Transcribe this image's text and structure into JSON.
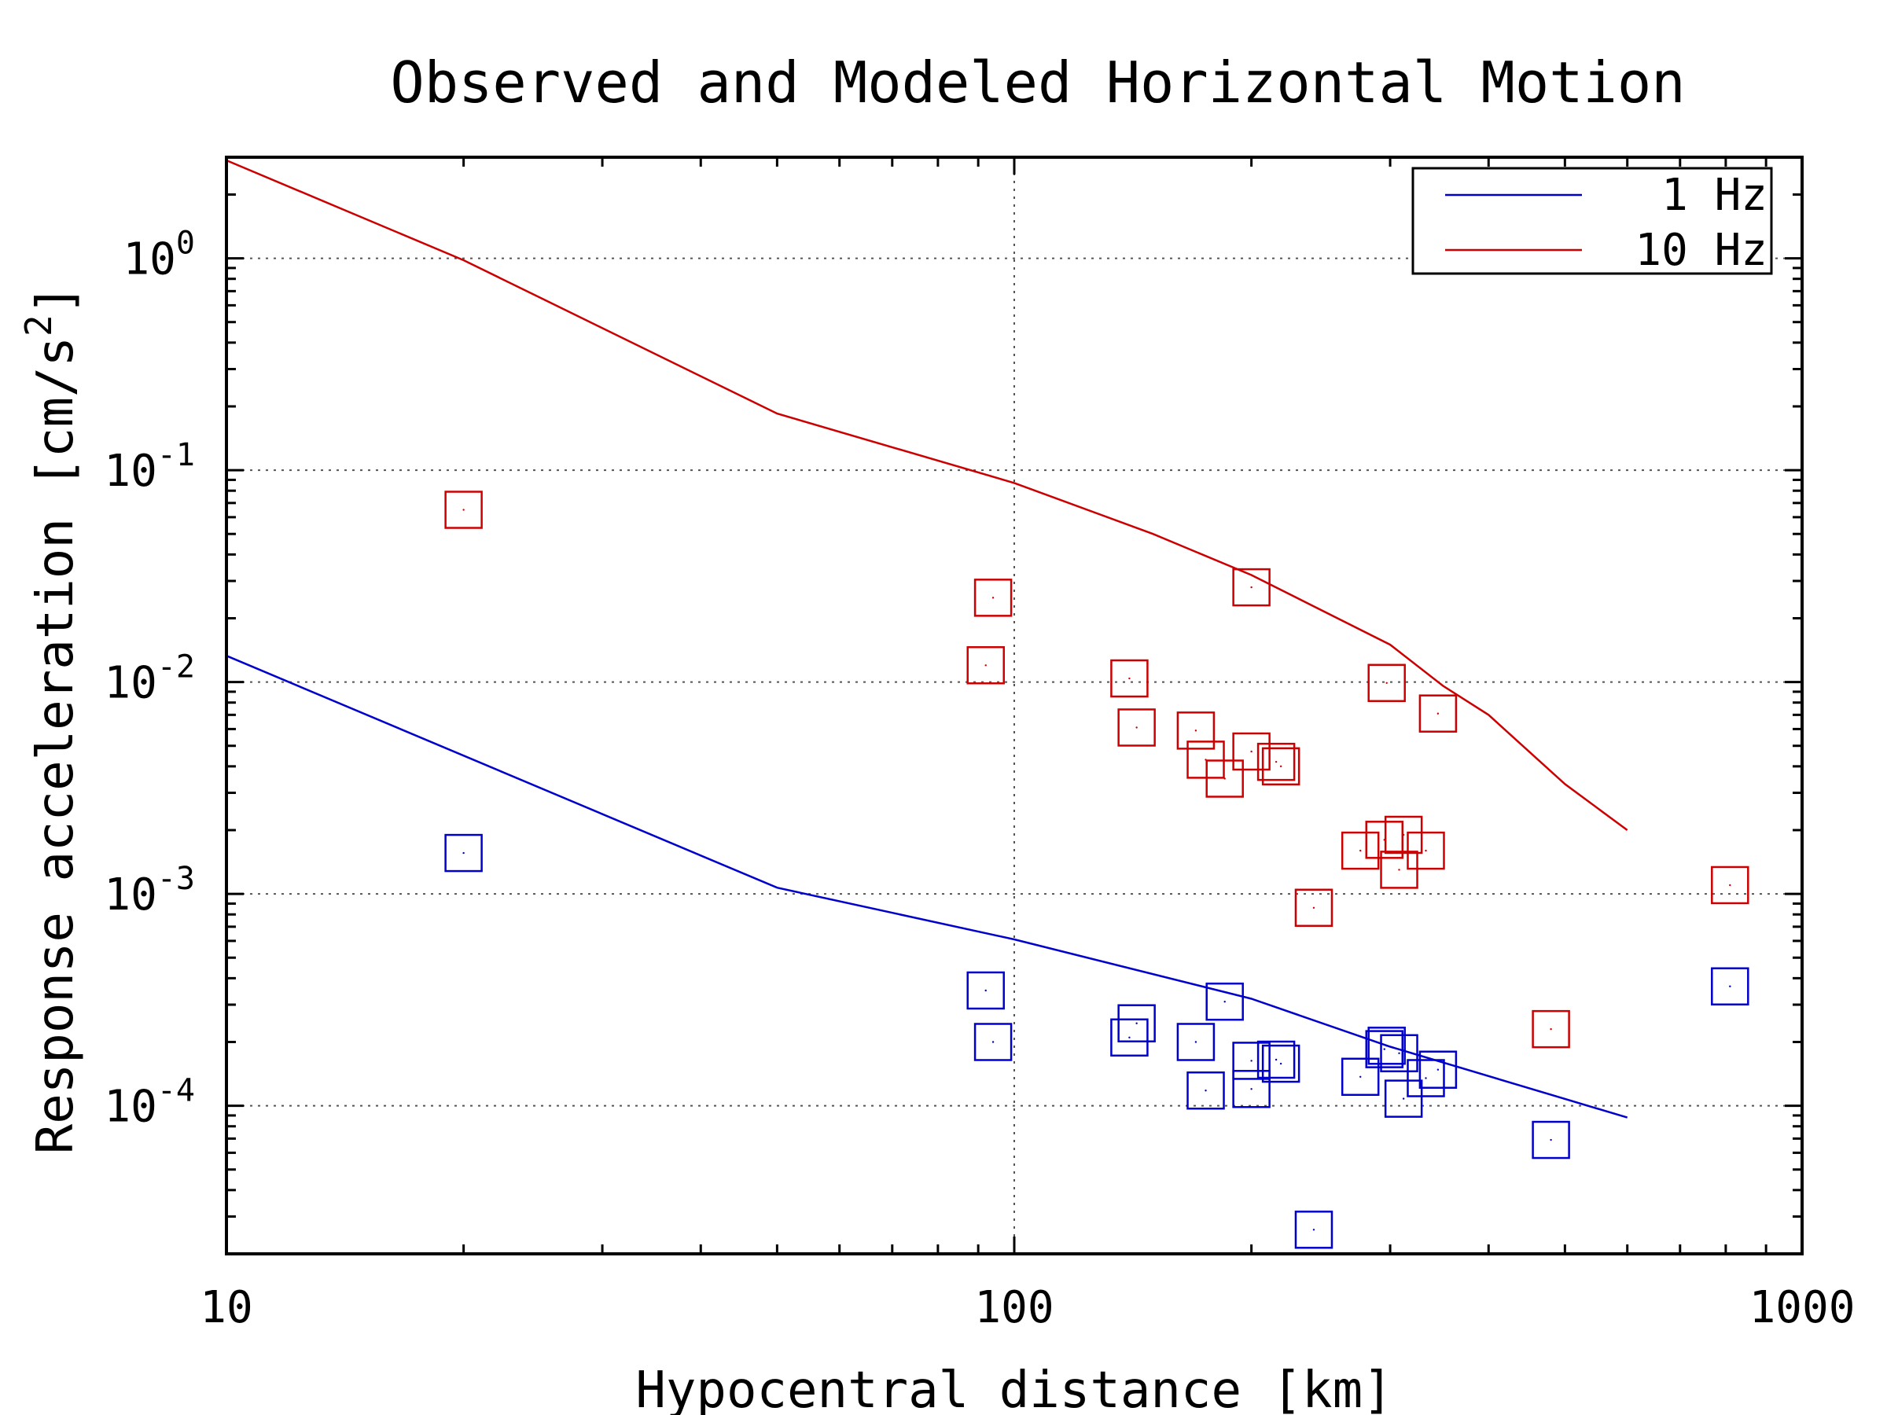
{
  "chart_data": {
    "type": "scatter",
    "title": "Observed and Modeled Horizontal Motion",
    "xlabel": "Hypocentral distance [km]",
    "ylabel": "Response acceleration [cm/s^2]",
    "xscale": "log",
    "yscale": "log",
    "xlim": [
      10,
      1000
    ],
    "ylim": [
      2e-05,
      3
    ],
    "x_ticks": [
      {
        "value": 10,
        "label": "10"
      },
      {
        "value": 100,
        "label": "100"
      },
      {
        "value": 1000,
        "label": "1000"
      }
    ],
    "y_ticks": [
      {
        "value": 1,
        "base": "10",
        "exp": "0"
      },
      {
        "value": 0.1,
        "base": "10",
        "exp": "-1"
      },
      {
        "value": 0.01,
        "base": "10",
        "exp": "-2"
      },
      {
        "value": 0.001,
        "base": "10",
        "exp": "-3"
      },
      {
        "value": 0.0001,
        "base": "10",
        "exp": "-4"
      }
    ],
    "grid": true,
    "legend_position": "top-right",
    "series": [
      {
        "name": "1 Hz",
        "legend_label": "1 Hz",
        "color": "#0000cc",
        "model": {
          "x": [
            10,
            50,
            100,
            200,
            300,
            600
          ],
          "y": [
            0.0133,
            0.00107,
            0.00061,
            0.00032,
            0.00019,
            8.8e-05
          ]
        },
        "observed": {
          "x": [
            20,
            92,
            94,
            140,
            143,
            170,
            175,
            185,
            200,
            200,
            215,
            218,
            240,
            275,
            295,
            297,
            308,
            312,
            333,
            345,
            480,
            810
          ],
          "y": [
            0.00156,
            0.00035,
            0.0002,
            0.00021,
            0.000245,
            0.0002,
            0.000118,
            0.00031,
            0.000163,
            0.00012,
            0.000165,
            0.000158,
            2.6e-05,
            0.000137,
            0.000185,
            0.000192,
            0.000177,
            0.000108,
            0.000135,
            0.000148,
            6.9e-05,
            0.000366
          ]
        }
      },
      {
        "name": "10 Hz",
        "legend_label": "10 Hz",
        "color": "#cc0000",
        "model": {
          "x": [
            10,
            20,
            50,
            100,
            150,
            200,
            300,
            350,
            400,
            500,
            600
          ],
          "y": [
            2.9,
            0.98,
            0.185,
            0.087,
            0.05,
            0.032,
            0.015,
            0.0096,
            0.007,
            0.0033,
            0.002
          ]
        },
        "observed": {
          "x": [
            20,
            92,
            94,
            140,
            143,
            170,
            175,
            185,
            200,
            200,
            215,
            218,
            240,
            275,
            295,
            297,
            308,
            312,
            333,
            345,
            480,
            810
          ],
          "y": [
            0.065,
            0.012,
            0.025,
            0.0104,
            0.0061,
            0.0059,
            0.0043,
            0.0035,
            0.028,
            0.0047,
            0.0042,
            0.004,
            0.00086,
            0.0016,
            0.0018,
            0.0099,
            0.0013,
            0.0019,
            0.0016,
            0.0071,
            0.00023,
            0.0011
          ]
        }
      }
    ]
  }
}
